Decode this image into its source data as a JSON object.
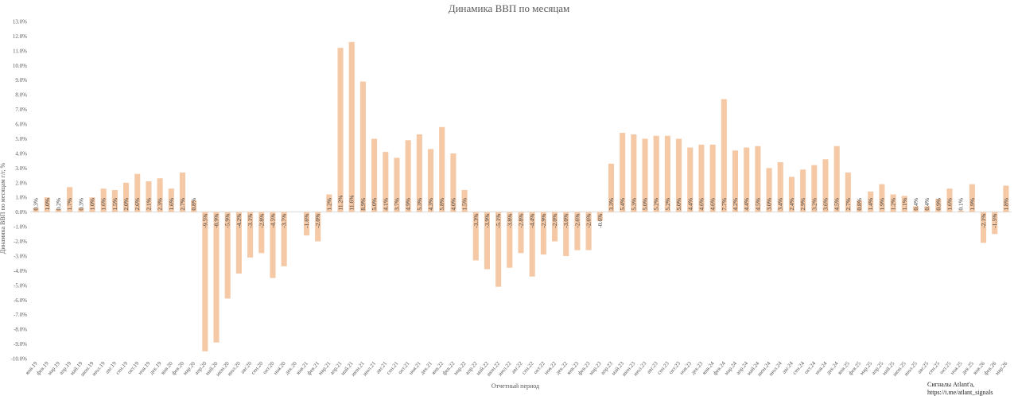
{
  "chart_data": {
    "type": "bar",
    "title": "Динамика ВВП по месяцам",
    "xlabel": "Отчетный период",
    "ylabel": "Динамика ВВП по месяцам г/г, %",
    "ylim": [
      -10,
      13
    ],
    "ytick_step": 1,
    "grid": false,
    "legend": "none",
    "bar_color": "#F5C9A6",
    "categories": [
      "янв.19",
      "фев.19",
      "мар.19",
      "апр.19",
      "май.19",
      "июн.19",
      "июл.19",
      "авг.19",
      "сен.19",
      "окт.19",
      "ноя.19",
      "дек.19",
      "янв.20",
      "фев.20",
      "мар.20",
      "апр.20",
      "май.20",
      "июн.20",
      "июл.20",
      "авг.20",
      "сен.20",
      "окт.20",
      "ноя.20",
      "дек.20",
      "янв.21",
      "фев.21",
      "мар.21",
      "апр.21",
      "май.21",
      "июн.21",
      "июл.21",
      "авг.21",
      "сен.21",
      "окт.21",
      "ноя.21",
      "дек.21",
      "янв.22",
      "фев.22",
      "мар.22",
      "апр.22",
      "май.22",
      "июн.22",
      "июл.22",
      "авг.22",
      "сен.22",
      "окт.22",
      "ноя.22",
      "дек.22",
      "янв.23",
      "фев.23",
      "мар.23",
      "апр.23",
      "май.23",
      "июн.23",
      "июл.23",
      "авг.23",
      "сен.23",
      "окт.23",
      "ноя.23",
      "дек.23",
      "янв.24",
      "фев.24",
      "мар.24",
      "апр.24",
      "май.24",
      "июн.24",
      "июл.24",
      "авг.24",
      "сен.24",
      "окт.24",
      "ноя.24",
      "дек.24",
      "янв.25",
      "фев.25",
      "мар.25",
      "апр.25",
      "май.25",
      "июн.25",
      "июл.25",
      "авг.25",
      "сен.25",
      "окт.25",
      "ноя.25",
      "дек.25",
      "янв.26",
      "фев.26",
      "мар.26"
    ],
    "values": [
      0.3,
      1.0,
      0.2,
      1.7,
      0.3,
      1.0,
      1.6,
      1.5,
      2.0,
      2.6,
      2.1,
      2.3,
      1.6,
      2.7,
      0.8,
      -9.5,
      -8.9,
      -5.9,
      -4.2,
      -3.1,
      -2.8,
      -4.5,
      -3.7,
      0.0,
      -1.6,
      -2.0,
      1.2,
      11.2,
      11.6,
      8.9,
      5.0,
      4.1,
      3.7,
      4.9,
      5.3,
      4.3,
      5.8,
      4.0,
      1.5,
      -3.3,
      -3.9,
      -5.1,
      -3.8,
      -2.8,
      -4.4,
      -2.9,
      -2.0,
      -3.0,
      -2.6,
      -2.6,
      -0.6,
      3.3,
      5.4,
      5.3,
      5.0,
      5.2,
      5.2,
      5.0,
      4.4,
      4.6,
      4.6,
      7.7,
      4.2,
      4.4,
      4.5,
      3.0,
      3.4,
      2.4,
      2.9,
      3.2,
      3.6,
      4.5,
      2.7,
      0.8,
      1.4,
      1.9,
      1.2,
      1.1,
      0.4,
      0.4,
      0.9,
      1.6,
      0.1,
      1.9,
      -2.1,
      -1.5,
      1.8
    ],
    "labels": [
      "0.3%",
      "1.0%",
      "0.2%",
      "1.7%",
      "0.3%",
      "1.0%",
      "1.6%",
      "1.5%",
      "2.0%",
      "2.6%",
      "2.1%",
      "2.3%",
      "1.6%",
      "2.7%",
      "0.8%",
      "-9.5%",
      "-8.9%",
      "-5.9%",
      "-4.2%",
      "-3.1%",
      "-2.8%",
      "-4.5%",
      "-3.7%",
      "",
      "-1.6%",
      "-2.0%",
      "1.2%",
      "11.2%",
      "11.6%",
      "8.9%",
      "5.0%",
      "4.1%",
      "3.7%",
      "4.9%",
      "5.3%",
      "4.3%",
      "5.8%",
      "4.0%",
      "1.5%",
      "-3.3%",
      "-3.9%",
      "-5.1%",
      "-3.8%",
      "-2.8%",
      "-4.4%",
      "-2.9%",
      "-2.0%",
      "-3.0%",
      "-2.6%",
      "-2.6%",
      "-0.6%",
      "3.3%",
      "5.4%",
      "5.3%",
      "5.0%",
      "5.2%",
      "5.2%",
      "5.0%",
      "4.4%",
      "4.6%",
      "4.6%",
      "7.7%",
      "4.2%",
      "4.4%",
      "4.5%",
      "3.0%",
      "3.4%",
      "2.4%",
      "2.9%",
      "3.2%",
      "3.6%",
      "4.5%",
      "2.7%",
      "0.8%",
      "1.4%",
      "1.9%",
      "1.2%",
      "1.1%",
      "0.4%",
      "0.4%",
      "0.9%",
      "1.6%",
      "0.1%",
      "1.9%",
      "-2.1%",
      "-1.5%",
      "1.8%"
    ]
  },
  "credit": {
    "line1": "Сигналы Atlant'a,",
    "line2": "https://t.me/atlant_signals"
  }
}
